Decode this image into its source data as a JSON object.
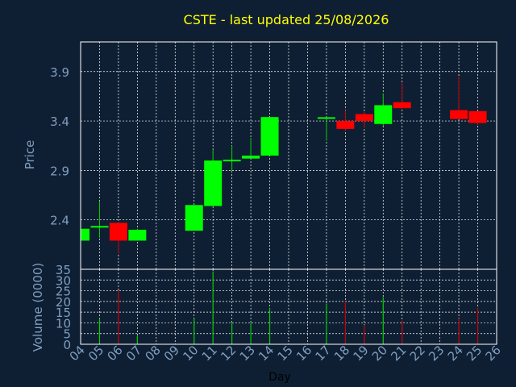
{
  "colors": {
    "background": "#0f1f33",
    "frame": "#ffffff",
    "grid": "#ffffff",
    "title": "#ffff00",
    "axis_text": "#7f9fbf",
    "up": "#00ff00",
    "down": "#ff0000",
    "up_wick": "#00cc00",
    "down_wick": "#cc0000"
  },
  "chart_data": [
    {
      "type": "candlestick",
      "title": "CSTE - last updated 25/08/2026",
      "ylabel": "Price",
      "ylim": [
        1.9,
        4.2
      ],
      "yticks": [
        2.4,
        2.9,
        3.4,
        3.9
      ],
      "ytick_labels": [
        "2.4",
        "2.9",
        "3.4",
        "3.9"
      ],
      "grid": true,
      "x_ticks": [
        "04",
        "05",
        "06",
        "07",
        "08",
        "09",
        "10",
        "11",
        "12",
        "13",
        "14",
        "15",
        "16",
        "17",
        "18",
        "19",
        "20",
        "21",
        "22",
        "23",
        "24",
        "25",
        "26"
      ],
      "candles": [
        {
          "day": "04",
          "open": 2.19,
          "high": 2.31,
          "low": 2.19,
          "close": 2.31
        },
        {
          "day": "05",
          "open": 2.32,
          "high": 2.59,
          "low": 2.22,
          "close": 2.33
        },
        {
          "day": "06",
          "open": 2.37,
          "high": 2.37,
          "low": 2.06,
          "close": 2.19
        },
        {
          "day": "07",
          "open": 2.19,
          "high": 2.31,
          "low": 2.19,
          "close": 2.3
        },
        {
          "day": "10",
          "open": 2.29,
          "high": 2.55,
          "low": 2.29,
          "close": 2.55
        },
        {
          "day": "11",
          "open": 2.54,
          "high": 3.11,
          "low": 2.54,
          "close": 3.0
        },
        {
          "day": "12",
          "open": 2.99,
          "high": 3.15,
          "low": 2.89,
          "close": 3.0
        },
        {
          "day": "13",
          "open": 3.02,
          "high": 3.23,
          "low": 3.02,
          "close": 3.05
        },
        {
          "day": "14",
          "open": 3.05,
          "high": 3.44,
          "low": 3.05,
          "close": 3.44
        },
        {
          "day": "17",
          "open": 3.42,
          "high": 3.44,
          "low": 3.2,
          "close": 3.43
        },
        {
          "day": "18",
          "open": 3.4,
          "high": 3.51,
          "low": 3.3,
          "close": 3.32
        },
        {
          "day": "19",
          "open": 3.47,
          "high": 3.49,
          "low": 3.33,
          "close": 3.4
        },
        {
          "day": "20",
          "open": 3.37,
          "high": 3.68,
          "low": 3.35,
          "close": 3.56
        },
        {
          "day": "21",
          "open": 3.59,
          "high": 3.79,
          "low": 3.52,
          "close": 3.53
        },
        {
          "day": "24",
          "open": 3.51,
          "high": 3.85,
          "low": 3.42,
          "close": 3.42
        },
        {
          "day": "25",
          "open": 3.5,
          "high": 3.5,
          "low": 3.36,
          "close": 3.38
        }
      ]
    },
    {
      "type": "bar",
      "xlabel": "Day",
      "ylabel": "Volume (0000)",
      "ylim": [
        0,
        35
      ],
      "yticks": [
        0,
        5,
        10,
        15,
        20,
        25,
        30,
        35
      ],
      "ytick_labels": [
        "0",
        "5",
        "10",
        "15",
        "20",
        "25",
        "30",
        "35"
      ],
      "grid": true,
      "categories": [
        "05",
        "06",
        "07",
        "10",
        "11",
        "12",
        "13",
        "14",
        "17",
        "18",
        "19",
        "20",
        "21",
        "24",
        "25"
      ],
      "values": [
        12,
        25,
        4,
        12,
        34,
        10,
        10,
        17,
        19,
        20,
        9,
        22,
        11,
        12,
        17
      ],
      "colors": [
        "up",
        "down",
        "up",
        "up",
        "up",
        "up",
        "up",
        "up",
        "up",
        "down",
        "down",
        "up",
        "down",
        "down",
        "down"
      ]
    }
  ]
}
